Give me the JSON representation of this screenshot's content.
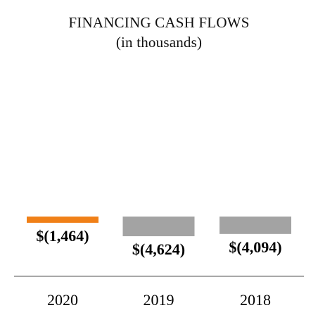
{
  "chart_data": {
    "type": "bar",
    "title": "FINANCING CASH FLOWS",
    "subtitle": "(in thousands)",
    "categories": [
      "2020",
      "2019",
      "2018"
    ],
    "values": [
      -1464,
      -4624,
      -4094
    ],
    "value_labels": [
      "$(1,464)",
      "$(4,624)",
      "$(4,094)"
    ],
    "colors": [
      "#f08018",
      "#a3a3a3",
      "#a3a3a3"
    ],
    "ylim": [
      -4624,
      0
    ],
    "grid": false,
    "legend": "none"
  }
}
